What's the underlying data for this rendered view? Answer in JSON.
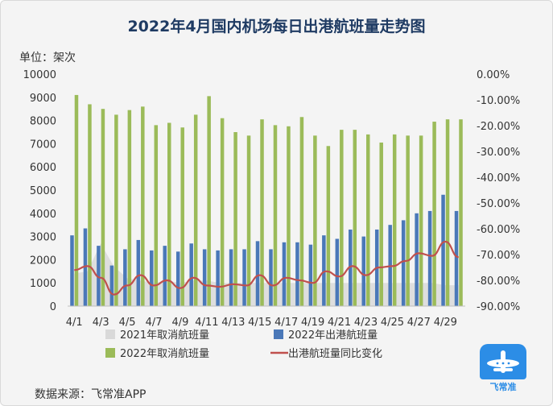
{
  "header": {
    "title": "2022年4月国内机场每日出港航班量走势图",
    "unit_label": "单位：架次",
    "source": "数据来源：飞常准APP"
  },
  "logo": {
    "name": "plane-logo-icon",
    "text": "飞常准"
  },
  "colors": {
    "cancel_2021": "#d9d9d9",
    "outbound_2022": "#4a78b8",
    "cancel_2022": "#9bbb59",
    "yoy": "#c0504d"
  },
  "chart_data": {
    "type": "bar",
    "x": [
      "4/1",
      "4/2",
      "4/3",
      "4/4",
      "4/5",
      "4/6",
      "4/7",
      "4/8",
      "4/9",
      "4/10",
      "4/11",
      "4/12",
      "4/13",
      "4/14",
      "4/15",
      "4/16",
      "4/17",
      "4/18",
      "4/19",
      "4/20",
      "4/21",
      "4/22",
      "4/23",
      "4/24",
      "4/25",
      "4/26",
      "4/27",
      "4/28",
      "4/29",
      "4/30"
    ],
    "x_tick_labels": [
      "4/1",
      "4/3",
      "4/5",
      "4/7",
      "4/9",
      "4/11",
      "4/13",
      "4/15",
      "4/17",
      "4/19",
      "4/21",
      "4/23",
      "4/25",
      "4/27",
      "4/29"
    ],
    "left_axis": {
      "ticks": [
        "0",
        "1000",
        "2000",
        "3000",
        "4000",
        "5000",
        "6000",
        "7000",
        "8000",
        "9000",
        "10000"
      ],
      "ylim": [
        0,
        10000
      ]
    },
    "right_axis": {
      "ticks": [
        "0.00%",
        "-10.00%",
        "-20.00%",
        "-30.00%",
        "-40.00%",
        "-50.00%",
        "-60.00%",
        "-70.00%",
        "-80.00%",
        "-90.00%"
      ],
      "ylim": [
        -90,
        0
      ]
    },
    "series": [
      {
        "name": "2021年取消航班量",
        "type": "area",
        "axis": "left",
        "values": [
          1400,
          1500,
          2700,
          1700,
          1200,
          1100,
          1000,
          1100,
          1000,
          1100,
          1100,
          1000,
          1000,
          1000,
          1000,
          1000,
          1000,
          1000,
          1000,
          1000,
          1000,
          1000,
          1000,
          1000,
          1000,
          1000,
          1000,
          1000,
          900,
          900
        ]
      },
      {
        "name": "2022年出港航班量",
        "type": "bar",
        "axis": "left",
        "values": [
          3050,
          3350,
          2600,
          1750,
          2450,
          2850,
          2400,
          2600,
          2350,
          2700,
          2450,
          2400,
          2450,
          2450,
          2800,
          2450,
          2750,
          2750,
          2650,
          3050,
          2900,
          3300,
          3000,
          3300,
          3500,
          3700,
          4000,
          4100,
          4800,
          4100
        ]
      },
      {
        "name": "2022年取消航班量",
        "type": "bar",
        "axis": "left",
        "values": [
          9100,
          8700,
          8500,
          8250,
          8450,
          8600,
          7800,
          7900,
          7700,
          8250,
          9050,
          8100,
          7500,
          7350,
          8050,
          7800,
          7750,
          8150,
          7350,
          6900,
          7600,
          7600,
          7400,
          7050,
          7400,
          7350,
          7350,
          7950,
          8050,
          8050
        ]
      },
      {
        "name": "出港航班量同比变化",
        "type": "line",
        "axis": "right",
        "values": [
          -76,
          -74.5,
          -79,
          -85.5,
          -82,
          -78,
          -82,
          -80,
          -83,
          -79,
          -82,
          -82.5,
          -81.5,
          -82,
          -78,
          -82,
          -79,
          -80,
          -81,
          -76.5,
          -78.5,
          -74.5,
          -78,
          -75,
          -74.5,
          -72.5,
          -69.5,
          -70.5,
          -65,
          -71
        ]
      }
    ],
    "grid": false,
    "legend": "bottom"
  }
}
